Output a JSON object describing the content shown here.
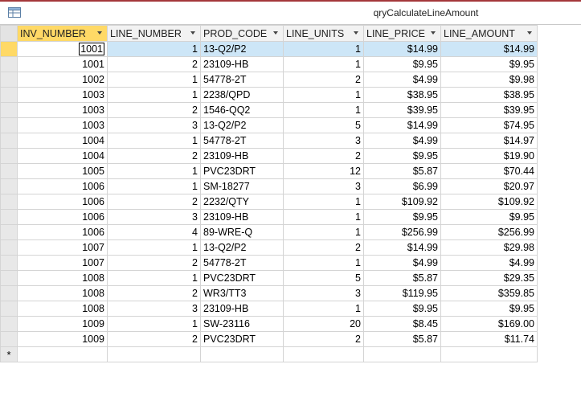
{
  "window": {
    "title": "qryCalculateLineAmount",
    "icon": "query-datasheet-icon"
  },
  "columns": [
    "INV_NUMBER",
    "LINE_NUMBER",
    "PROD_CODE",
    "LINE_UNITS",
    "LINE_PRICE",
    "LINE_AMOUNT"
  ],
  "new_record_marker": "*",
  "rows": [
    [
      "1001",
      "1",
      "13-Q2/P2",
      "1",
      "$14.99",
      "$14.99"
    ],
    [
      "1001",
      "2",
      "23109-HB",
      "1",
      "$9.95",
      "$9.95"
    ],
    [
      "1002",
      "1",
      "54778-2T",
      "2",
      "$4.99",
      "$9.98"
    ],
    [
      "1003",
      "1",
      "2238/QPD",
      "1",
      "$38.95",
      "$38.95"
    ],
    [
      "1003",
      "2",
      "1546-QQ2",
      "1",
      "$39.95",
      "$39.95"
    ],
    [
      "1003",
      "3",
      "13-Q2/P2",
      "5",
      "$14.99",
      "$74.95"
    ],
    [
      "1004",
      "1",
      "54778-2T",
      "3",
      "$4.99",
      "$14.97"
    ],
    [
      "1004",
      "2",
      "23109-HB",
      "2",
      "$9.95",
      "$19.90"
    ],
    [
      "1005",
      "1",
      "PVC23DRT",
      "12",
      "$5.87",
      "$70.44"
    ],
    [
      "1006",
      "1",
      "SM-18277",
      "3",
      "$6.99",
      "$20.97"
    ],
    [
      "1006",
      "2",
      "2232/QTY",
      "1",
      "$109.92",
      "$109.92"
    ],
    [
      "1006",
      "3",
      "23109-HB",
      "1",
      "$9.95",
      "$9.95"
    ],
    [
      "1006",
      "4",
      "89-WRE-Q",
      "1",
      "$256.99",
      "$256.99"
    ],
    [
      "1007",
      "1",
      "13-Q2/P2",
      "2",
      "$14.99",
      "$29.98"
    ],
    [
      "1007",
      "2",
      "54778-2T",
      "1",
      "$4.99",
      "$4.99"
    ],
    [
      "1008",
      "1",
      "PVC23DRT",
      "5",
      "$5.87",
      "$29.35"
    ],
    [
      "1008",
      "2",
      "WR3/TT3",
      "3",
      "$119.95",
      "$359.85"
    ],
    [
      "1008",
      "3",
      "23109-HB",
      "1",
      "$9.95",
      "$9.95"
    ],
    [
      "1009",
      "1",
      "SW-23116",
      "20",
      "$8.45",
      "$169.00"
    ],
    [
      "1009",
      "2",
      "PVC23DRT",
      "2",
      "$5.87",
      "$11.74"
    ]
  ]
}
